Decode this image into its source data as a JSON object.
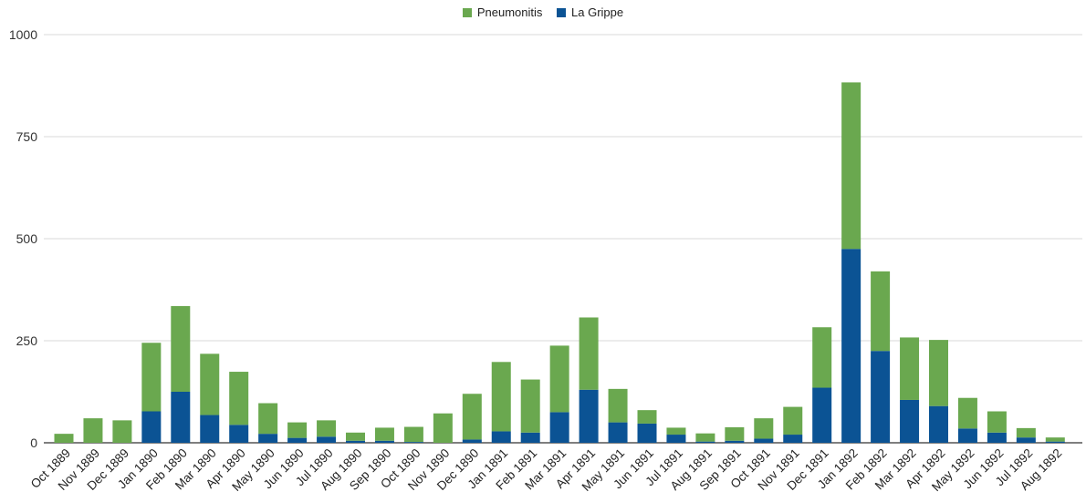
{
  "chart_data": {
    "type": "bar",
    "stacked": true,
    "legend_position": "top",
    "grid": true,
    "ylim": [
      0,
      1000
    ],
    "yticks": [
      0,
      250,
      500,
      750,
      1000
    ],
    "categories": [
      "Oct 1889",
      "Nov 1889",
      "Dec 1889",
      "Jan 1890",
      "Feb 1890",
      "Mar 1890",
      "Apr 1890",
      "May 1890",
      "Jun 1890",
      "Jul 1890",
      "Aug 1890",
      "Sep 1890",
      "Oct 1890",
      "Nov 1890",
      "Dec 1890",
      "Jan 1891",
      "Feb 1891",
      "Mar 1891",
      "Apr 1891",
      "May 1891",
      "Jun 1891",
      "Jul 1891",
      "Aug 1891",
      "Sep 1891",
      "Oct 1891",
      "Nov 1891",
      "Dec 1891",
      "Jan 1892",
      "Feb 1892",
      "Mar 1892",
      "Apr 1892",
      "May 1892",
      "Jun 1892",
      "Jul 1892",
      "Aug 1892"
    ],
    "series": [
      {
        "name": "La Grippe",
        "color": "#0b5394",
        "values": [
          0,
          0,
          0,
          77,
          125,
          68,
          44,
          22,
          12,
          15,
          5,
          5,
          2,
          0,
          8,
          28,
          25,
          75,
          130,
          50,
          47,
          20,
          3,
          5,
          10,
          20,
          135,
          475,
          225,
          105,
          90,
          35,
          25,
          13,
          3
        ]
      },
      {
        "name": "Pneumonitis",
        "color": "#6aa84f",
        "values": [
          22,
          60,
          55,
          168,
          210,
          150,
          130,
          75,
          38,
          40,
          20,
          32,
          37,
          72,
          112,
          170,
          130,
          163,
          177,
          82,
          33,
          17,
          20,
          33,
          50,
          68,
          148,
          408,
          195,
          153,
          162,
          75,
          52,
          23,
          10
        ]
      }
    ],
    "legend": [
      "Pneumonitis",
      "La Grippe"
    ]
  }
}
